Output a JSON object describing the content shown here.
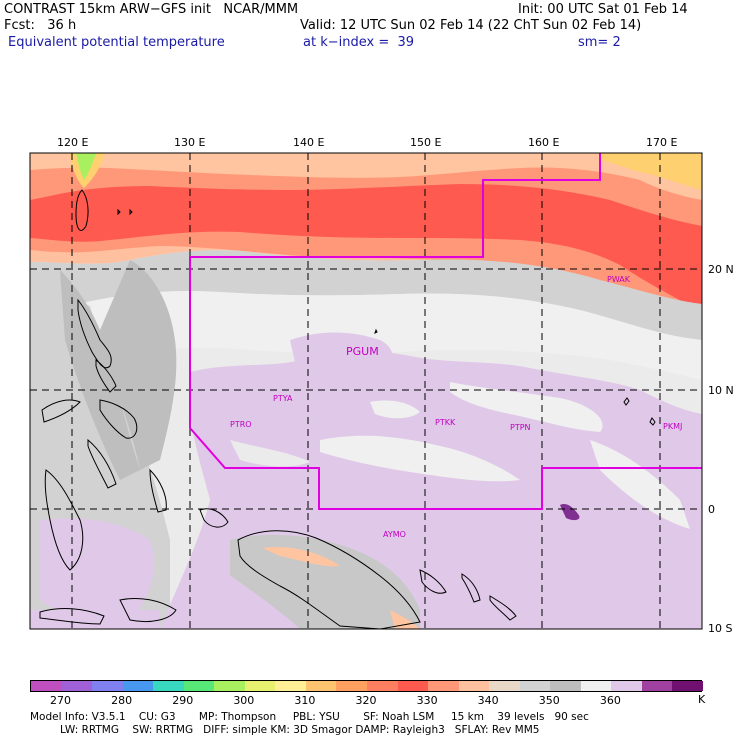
{
  "header": {
    "line1_left": "CONTRAST 15km ARW−GFS init   NCAR/MMM",
    "line1_right": "Init: 00 UTC Sat 01 Feb 14",
    "line2_left": "Fcst:   36 h",
    "line2_right": "Valid: 12 UTC Sun 02 Feb 14 (22 ChT Sun 02 Feb 14)",
    "line3_left": "Equivalent potential temperature",
    "line3_mid": "at k−index =  39",
    "line3_right": "sm= 2"
  },
  "map": {
    "lon_ticks": [
      "120 E",
      "130 E",
      "140 E",
      "150 E",
      "160 E",
      "170 E"
    ],
    "lat_ticks": [
      "20 N",
      "10 N",
      "0",
      "10 S"
    ],
    "stations": [
      "PGUM",
      "PTYA",
      "PTRO",
      "PTKK",
      "PTPN",
      "PKMJ",
      "PWAK",
      "AYMO"
    ],
    "colors": {
      "boundary": "#e000e0",
      "coast": "#000000",
      "grid": "#000000"
    }
  },
  "colorbar": {
    "labels": [
      "270",
      "280",
      "290",
      "300",
      "310",
      "320",
      "330",
      "340",
      "350",
      "360"
    ],
    "unit": "K",
    "colors": [
      "#c050c0",
      "#a060d8",
      "#8080f0",
      "#4898f0",
      "#38d8c0",
      "#58e878",
      "#a8f060",
      "#e8f070",
      "#fff098",
      "#ffc470",
      "#ffa060",
      "#ff8060",
      "#ff5a50",
      "#ff9878",
      "#ffc0a0",
      "#e8d8c8",
      "#d2d2d2",
      "#bebebe",
      "#f0f0f0",
      "#e0c8e8",
      "#a040a0",
      "#701070"
    ]
  },
  "footer": {
    "line1": "Model Info: V3.5.1    CU: G3       MP: Thompson     PBL: YSU       SF: Noah LSM     15 km    39 levels   90 sec",
    "line2": "         LW: RRTMG    SW: RRTMG   DIFF: simple KM: 3D Smagor DAMP: Rayleigh3   SFLAY: Rev MM5"
  }
}
